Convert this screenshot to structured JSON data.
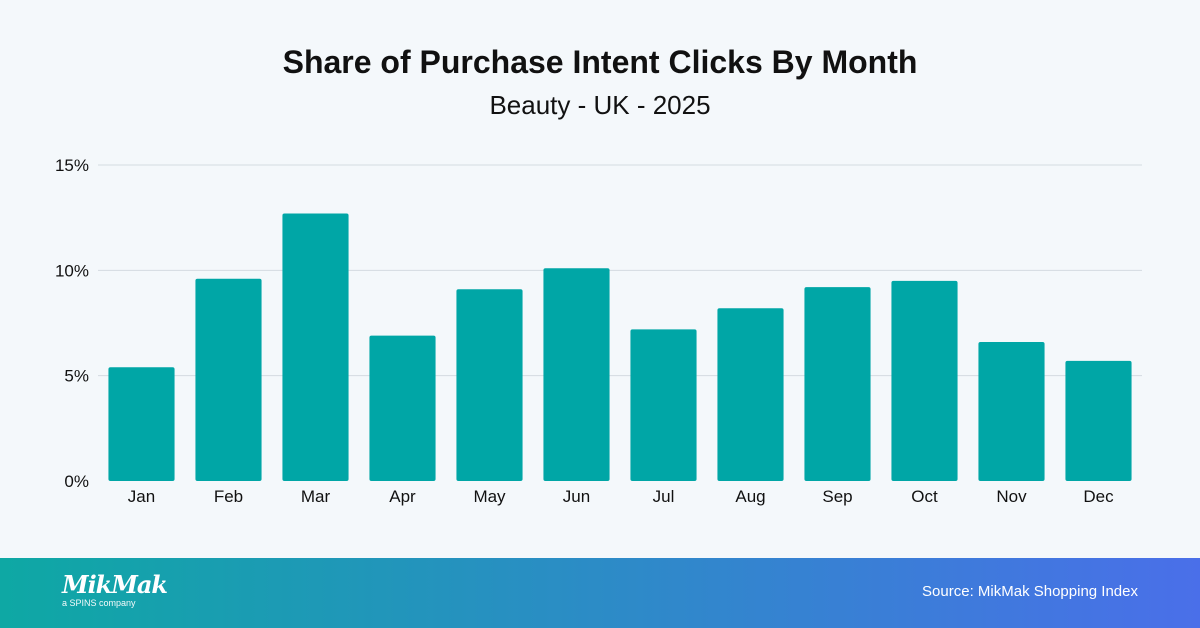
{
  "chart_data": {
    "type": "bar",
    "title": "Share of Purchase Intent Clicks By Month",
    "subtitle": "Beauty - UK - 2025",
    "categories": [
      "Jan",
      "Feb",
      "Mar",
      "Apr",
      "May",
      "Jun",
      "Jul",
      "Aug",
      "Sep",
      "Oct",
      "Nov",
      "Dec"
    ],
    "values": [
      5.4,
      9.6,
      12.7,
      6.9,
      9.1,
      10.1,
      7.2,
      8.2,
      9.2,
      9.5,
      6.6,
      5.7
    ],
    "xlabel": "",
    "ylabel": "",
    "ylim": [
      0,
      15
    ],
    "yticks": [
      0,
      5,
      10,
      15
    ],
    "ytick_labels": [
      "0%",
      "5%",
      "10%",
      "15%"
    ],
    "grid": true,
    "bar_color": "#00a6a6"
  },
  "footer": {
    "brand": "MikMak",
    "brand_tagline": "a SPINS company",
    "source": "Source: MikMak Shopping Index",
    "gradient_start": "#0ea8a4",
    "gradient_end": "#4a6fe9"
  }
}
